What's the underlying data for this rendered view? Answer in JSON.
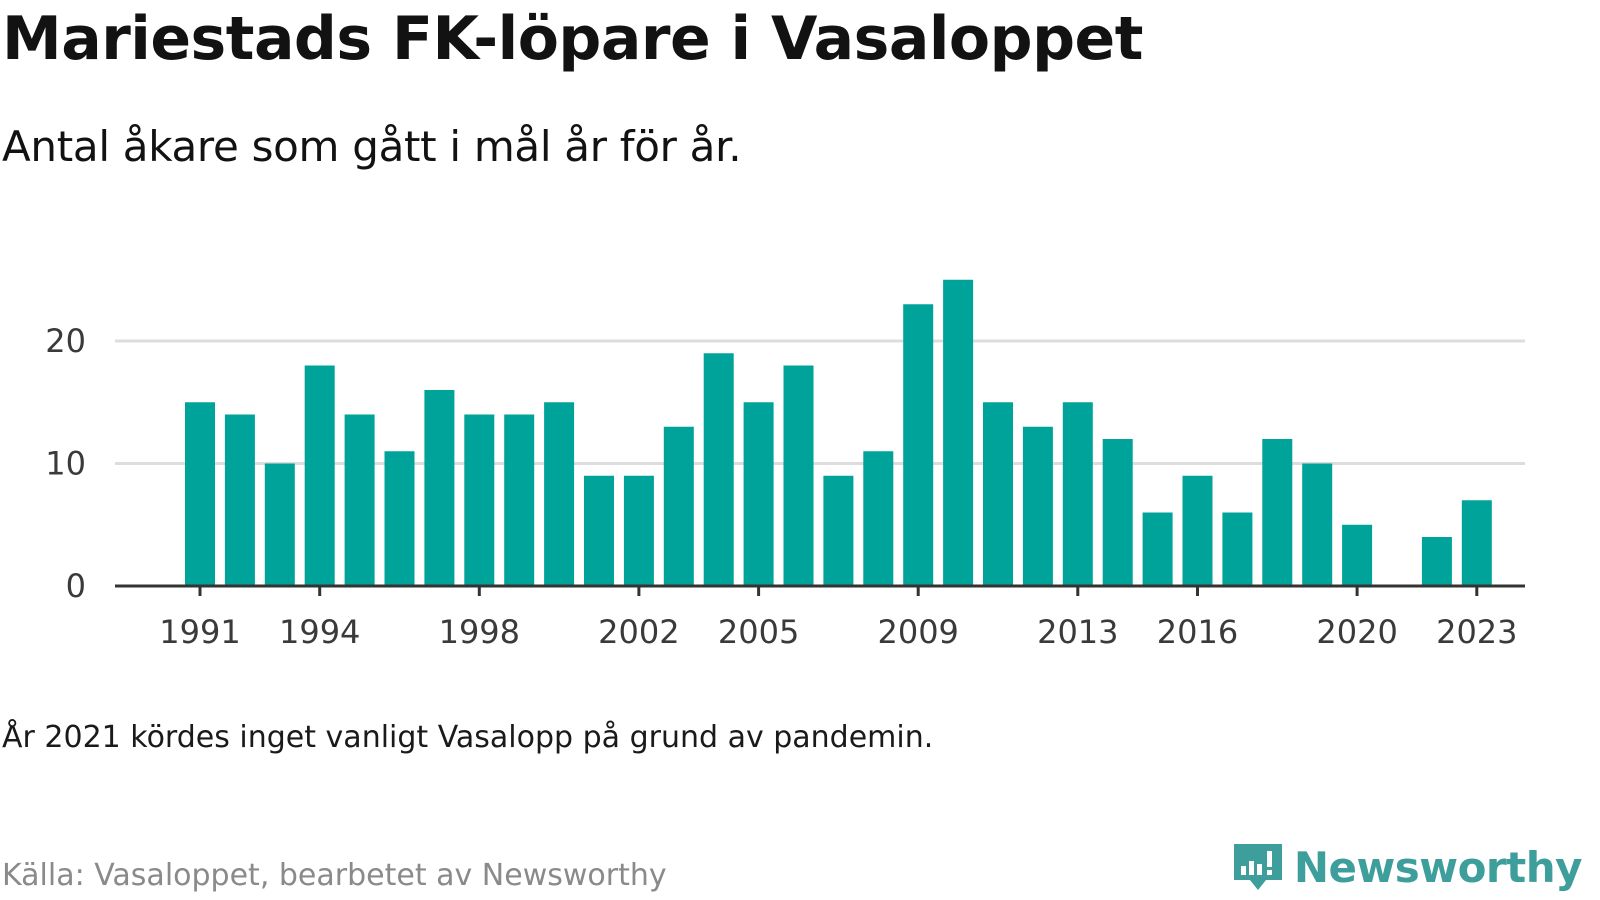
{
  "header": {
    "title": "Mariestads FK-löpare i Vasaloppet",
    "subtitle": "Antal åkare som gått i mål år för år."
  },
  "footer": {
    "note": "År 2021 kördes inget vanligt Vasalopp på grund av pandemin.",
    "source": "Källa: Vasaloppet, bearbetet av Newsworthy",
    "brand": "Newsworthy"
  },
  "colors": {
    "bar": "#00a39a",
    "grid": "#dddddd",
    "axis": "#333333",
    "brand": "#3d9e9b"
  },
  "chart_data": {
    "type": "bar",
    "title": "Mariestads FK-löpare i Vasaloppet",
    "subtitle": "Antal åkare som gått i mål år för år.",
    "xlabel": "",
    "ylabel": "",
    "ylim": [
      0,
      25
    ],
    "yticks": [
      0,
      10,
      20
    ],
    "xticks": [
      "1991",
      "1994",
      "1998",
      "2002",
      "2005",
      "2009",
      "2013",
      "2016",
      "2020",
      "2023"
    ],
    "grid": true,
    "legend": "none",
    "categories": [
      "1991",
      "1992",
      "1993",
      "1994",
      "1995",
      "1996",
      "1997",
      "1998",
      "1999",
      "2000",
      "2001",
      "2002",
      "2003",
      "2004",
      "2005",
      "2006",
      "2007",
      "2008",
      "2009",
      "2010",
      "2011",
      "2012",
      "2013",
      "2014",
      "2015",
      "2016",
      "2017",
      "2018",
      "2019",
      "2020",
      "2021",
      "2022",
      "2023"
    ],
    "values": [
      15,
      14,
      10,
      18,
      14,
      11,
      16,
      14,
      14,
      15,
      9,
      9,
      13,
      19,
      15,
      18,
      9,
      11,
      23,
      25,
      15,
      13,
      15,
      12,
      6,
      9,
      6,
      12,
      10,
      5,
      null,
      4,
      7
    ]
  }
}
